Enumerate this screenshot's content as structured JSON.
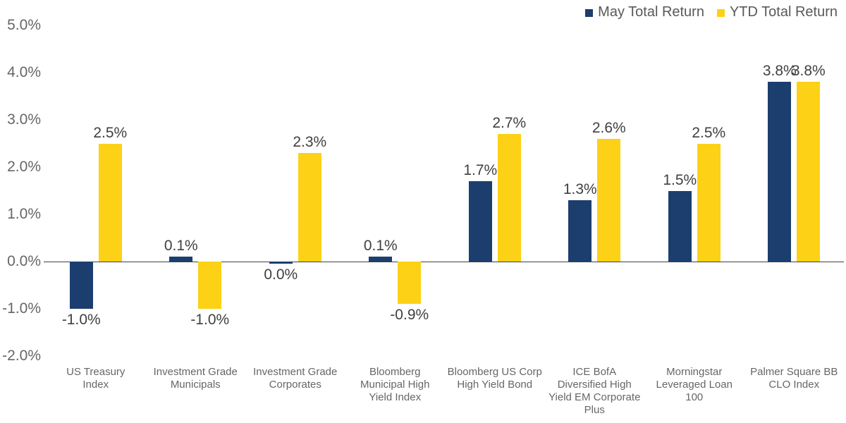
{
  "chart_data": {
    "type": "bar",
    "title": "",
    "xlabel": "",
    "ylabel": "",
    "categories": [
      "US Treasury\nIndex",
      "Investment Grade\nMunicipals",
      "Investment Grade\nCorporates",
      "Bloomberg\nMunicipal High\nYield Index",
      "Bloomberg US Corp\nHigh Yield Bond",
      "ICE BofA\nDiversified High\nYield EM Corporate\nPlus",
      "Morningstar\nLeveraged Loan\n100",
      "Palmer Square BB\nCLO Index"
    ],
    "series": [
      {
        "name": "May Total Return",
        "color": "#1B3E6E",
        "values": [
          -1.0,
          0.1,
          0.0,
          0.1,
          1.7,
          1.3,
          1.5,
          3.8
        ],
        "labels": [
          "-1.0%",
          "0.1%",
          "0.0%",
          "0.1%",
          "1.7%",
          "1.3%",
          "1.5%",
          "3.8%"
        ]
      },
      {
        "name": "YTD Total Return",
        "color": "#FCD116",
        "values": [
          2.5,
          -1.0,
          2.3,
          -0.9,
          2.7,
          2.6,
          2.5,
          3.8
        ],
        "labels": [
          "2.5%",
          "-1.0%",
          "2.3%",
          "-0.9%",
          "2.7%",
          "2.6%",
          "2.5%",
          "3.8%"
        ]
      }
    ],
    "y_axis": {
      "min": -2.0,
      "max": 5.0,
      "step": 1.0,
      "tick_labels": [
        "5.0%",
        "4.0%",
        "3.0%",
        "2.0%",
        "1.0%",
        "0.0%",
        "-1.0%",
        "-2.0%"
      ],
      "grid": false
    },
    "legend_position": "top-right",
    "colors": {
      "may_bar": "#1B3E6E",
      "ytd_bar": "#FCD116",
      "axis_line": "#404040",
      "tick_text": "#666666",
      "value_text": "#404040",
      "legend_text": "#595959",
      "category_text": "#666666"
    }
  }
}
